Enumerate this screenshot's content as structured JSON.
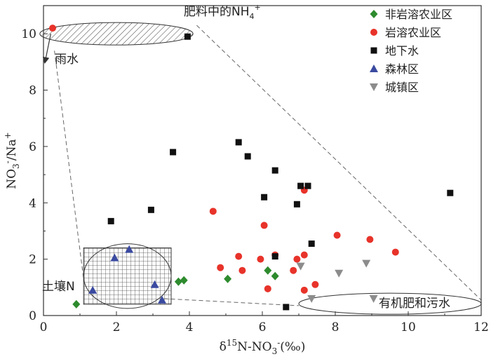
{
  "chart_data": {
    "type": "scatter",
    "xlabel": "δ15N-NO3-(‰)",
    "xlabel_parts": {
      "delta": "δ",
      "sup": "15",
      "base": "N-NO",
      "sub": "3",
      "sup2": "-",
      "unit": "(‰)"
    },
    "ylabel": "NO3-/Na+",
    "ylabel_parts": {
      "base": "NO",
      "sub": "3",
      "sup": "-",
      "sep": "/Na",
      "sup2": "+"
    },
    "xlim": [
      0,
      12
    ],
    "ylim": [
      0,
      11
    ],
    "xticks": [
      0,
      2,
      4,
      6,
      8,
      10,
      12
    ],
    "yticks": [
      0,
      2,
      4,
      6,
      8,
      10
    ],
    "grid": false,
    "legend_position": "top-right",
    "series": [
      {
        "name": "非岩溶农业区",
        "marker": "diamond",
        "color": "#2e8b2e",
        "points": [
          [
            0.9,
            0.4
          ],
          [
            3.7,
            1.2
          ],
          [
            3.85,
            1.25
          ],
          [
            5.05,
            1.3
          ],
          [
            6.15,
            1.6
          ],
          [
            6.35,
            1.4
          ]
        ]
      },
      {
        "name": "岩溶农业区",
        "marker": "circle",
        "color": "#e8332a",
        "points": [
          [
            0.25,
            10.2
          ],
          [
            4.65,
            3.7
          ],
          [
            4.85,
            1.7
          ],
          [
            5.35,
            2.1
          ],
          [
            5.45,
            1.6
          ],
          [
            5.95,
            2.0
          ],
          [
            6.05,
            3.2
          ],
          [
            6.15,
            0.95
          ],
          [
            6.35,
            2.15
          ],
          [
            6.85,
            1.6
          ],
          [
            6.95,
            2.0
          ],
          [
            7.15,
            0.9
          ],
          [
            7.15,
            2.15
          ],
          [
            7.15,
            4.45
          ],
          [
            7.45,
            1.1
          ],
          [
            8.05,
            2.85
          ],
          [
            8.95,
            2.7
          ],
          [
            9.65,
            2.25
          ]
        ]
      },
      {
        "name": "地下水",
        "marker": "square",
        "color": "#111111",
        "points": [
          [
            1.85,
            3.35
          ],
          [
            2.95,
            3.75
          ],
          [
            3.55,
            5.8
          ],
          [
            3.95,
            9.9
          ],
          [
            5.35,
            6.15
          ],
          [
            5.6,
            5.65
          ],
          [
            6.05,
            4.2
          ],
          [
            6.35,
            5.15
          ],
          [
            6.35,
            2.1
          ],
          [
            6.65,
            0.3
          ],
          [
            6.95,
            3.95
          ],
          [
            7.05,
            4.6
          ],
          [
            7.25,
            4.6
          ],
          [
            7.35,
            2.55
          ],
          [
            11.15,
            4.35
          ]
        ]
      },
      {
        "name": "森林区",
        "marker": "triangle-up",
        "color": "#3a4aa0",
        "points": [
          [
            1.35,
            0.9
          ],
          [
            1.95,
            2.05
          ],
          [
            2.35,
            2.35
          ],
          [
            3.05,
            1.1
          ],
          [
            3.25,
            0.55
          ]
        ]
      },
      {
        "name": "城镇区",
        "marker": "triangle-down",
        "color": "#8c8c8c",
        "points": [
          [
            7.05,
            1.75
          ],
          [
            7.35,
            0.6
          ],
          [
            8.1,
            1.5
          ],
          [
            8.85,
            1.85
          ],
          [
            9.05,
            0.6
          ]
        ]
      }
    ],
    "annotations": [
      {
        "text": "肥料中的NH",
        "sup": "+",
        "sub": "4"
      },
      {
        "text": "雨水"
      },
      {
        "text": "土壤N"
      },
      {
        "text": "有机肥和污水"
      }
    ]
  }
}
